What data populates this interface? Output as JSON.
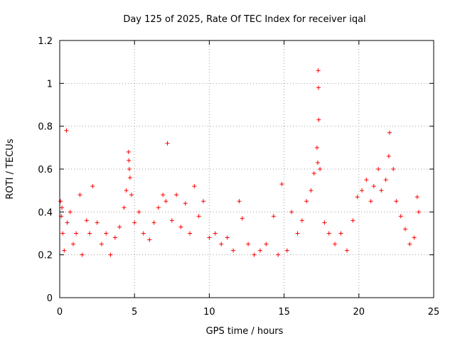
{
  "chart_data": {
    "type": "scatter",
    "title": "Day 125 of 2025, Rate Of TEC Index for receiver iqal",
    "xlabel": "GPS time / hours",
    "ylabel": "ROTI / TECUs",
    "xlim": [
      0,
      25
    ],
    "ylim": [
      0,
      1.2
    ],
    "xticks": [
      0,
      5,
      10,
      15,
      20,
      25
    ],
    "yticks": [
      0,
      0.2,
      0.4,
      0.6,
      0.8,
      1,
      1.2
    ],
    "xtick_labels": [
      "0",
      "5",
      "10",
      "15",
      "20",
      "25"
    ],
    "ytick_labels": [
      "0",
      "0.2",
      "0.4",
      "0.6",
      "0.8",
      "1",
      "1.2"
    ],
    "grid": true,
    "marker": "+",
    "series": [
      {
        "name": "ROTI",
        "color": "#ff0000",
        "points": [
          [
            0.05,
            0.45
          ],
          [
            0.1,
            0.38
          ],
          [
            0.15,
            0.42
          ],
          [
            0.2,
            0.3
          ],
          [
            0.3,
            0.22
          ],
          [
            0.45,
            0.78
          ],
          [
            0.5,
            0.35
          ],
          [
            0.7,
            0.4
          ],
          [
            0.9,
            0.25
          ],
          [
            1.1,
            0.3
          ],
          [
            1.35,
            0.48
          ],
          [
            1.5,
            0.2
          ],
          [
            1.8,
            0.36
          ],
          [
            2.0,
            0.3
          ],
          [
            2.2,
            0.52
          ],
          [
            2.5,
            0.35
          ],
          [
            2.8,
            0.25
          ],
          [
            3.1,
            0.3
          ],
          [
            3.4,
            0.2
          ],
          [
            3.7,
            0.28
          ],
          [
            4.0,
            0.33
          ],
          [
            4.3,
            0.42
          ],
          [
            4.45,
            0.5
          ],
          [
            4.6,
            0.68
          ],
          [
            4.62,
            0.64
          ],
          [
            4.65,
            0.6
          ],
          [
            4.7,
            0.56
          ],
          [
            4.8,
            0.48
          ],
          [
            5.0,
            0.35
          ],
          [
            5.3,
            0.4
          ],
          [
            5.6,
            0.3
          ],
          [
            6.0,
            0.27
          ],
          [
            6.3,
            0.35
          ],
          [
            6.6,
            0.42
          ],
          [
            6.9,
            0.48
          ],
          [
            7.1,
            0.45
          ],
          [
            7.2,
            0.72
          ],
          [
            7.5,
            0.36
          ],
          [
            7.8,
            0.48
          ],
          [
            8.1,
            0.33
          ],
          [
            8.4,
            0.44
          ],
          [
            8.7,
            0.3
          ],
          [
            9.0,
            0.52
          ],
          [
            9.3,
            0.38
          ],
          [
            9.6,
            0.45
          ],
          [
            10.0,
            0.28
          ],
          [
            10.4,
            0.3
          ],
          [
            10.8,
            0.25
          ],
          [
            11.2,
            0.28
          ],
          [
            11.6,
            0.22
          ],
          [
            12.0,
            0.45
          ],
          [
            12.2,
            0.37
          ],
          [
            12.6,
            0.25
          ],
          [
            13.0,
            0.2
          ],
          [
            13.4,
            0.22
          ],
          [
            13.8,
            0.25
          ],
          [
            14.3,
            0.38
          ],
          [
            14.6,
            0.2
          ],
          [
            14.85,
            0.53
          ],
          [
            15.2,
            0.22
          ],
          [
            15.5,
            0.4
          ],
          [
            15.9,
            0.3
          ],
          [
            16.2,
            0.36
          ],
          [
            16.5,
            0.45
          ],
          [
            16.8,
            0.5
          ],
          [
            17.0,
            0.58
          ],
          [
            17.2,
            0.7
          ],
          [
            17.25,
            0.63
          ],
          [
            17.28,
            1.06
          ],
          [
            17.3,
            0.98
          ],
          [
            17.32,
            0.83
          ],
          [
            17.4,
            0.6
          ],
          [
            17.7,
            0.35
          ],
          [
            18.0,
            0.3
          ],
          [
            18.4,
            0.25
          ],
          [
            18.8,
            0.3
          ],
          [
            19.2,
            0.22
          ],
          [
            19.6,
            0.36
          ],
          [
            19.9,
            0.47
          ],
          [
            20.2,
            0.5
          ],
          [
            20.5,
            0.55
          ],
          [
            20.8,
            0.45
          ],
          [
            21.0,
            0.52
          ],
          [
            21.3,
            0.6
          ],
          [
            21.5,
            0.5
          ],
          [
            21.8,
            0.55
          ],
          [
            22.0,
            0.66
          ],
          [
            22.05,
            0.77
          ],
          [
            22.3,
            0.6
          ],
          [
            22.5,
            0.45
          ],
          [
            22.8,
            0.38
          ],
          [
            23.1,
            0.32
          ],
          [
            23.4,
            0.25
          ],
          [
            23.7,
            0.28
          ],
          [
            23.9,
            0.47
          ],
          [
            24.0,
            0.4
          ]
        ]
      }
    ]
  }
}
